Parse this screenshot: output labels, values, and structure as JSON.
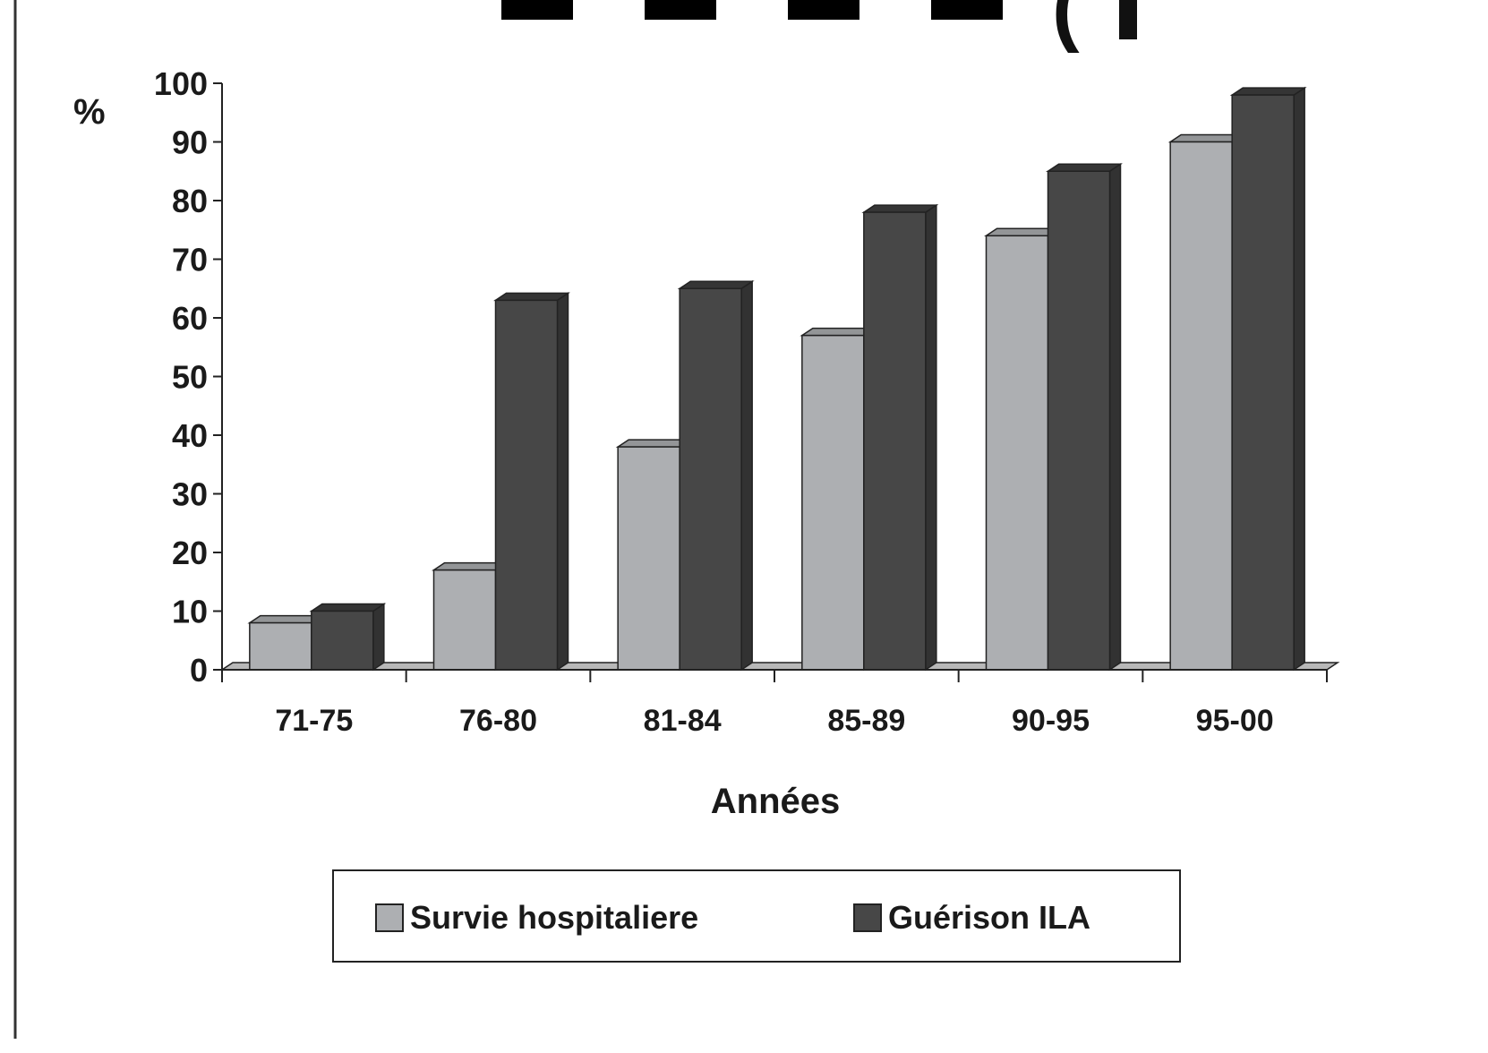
{
  "chart_data": {
    "type": "bar",
    "title_fragment": "(",
    "ylabel": "%",
    "xlabel": "Années",
    "ylim": [
      0,
      100
    ],
    "yticks": [
      0,
      10,
      20,
      30,
      40,
      50,
      60,
      70,
      80,
      90,
      100
    ],
    "categories": [
      "71-75",
      "76-80",
      "81-84",
      "85-89",
      "90-95",
      "95-00"
    ],
    "series": [
      {
        "name": "Survie hospitaliere",
        "values": [
          8,
          17,
          38,
          57,
          74,
          90
        ],
        "color": "#adafb2"
      },
      {
        "name": "Guérison ILA",
        "values": [
          10,
          63,
          65,
          78,
          85,
          98
        ],
        "color": "#474747"
      }
    ],
    "legend_position": "bottom-center",
    "grid": false,
    "style": "3d"
  }
}
